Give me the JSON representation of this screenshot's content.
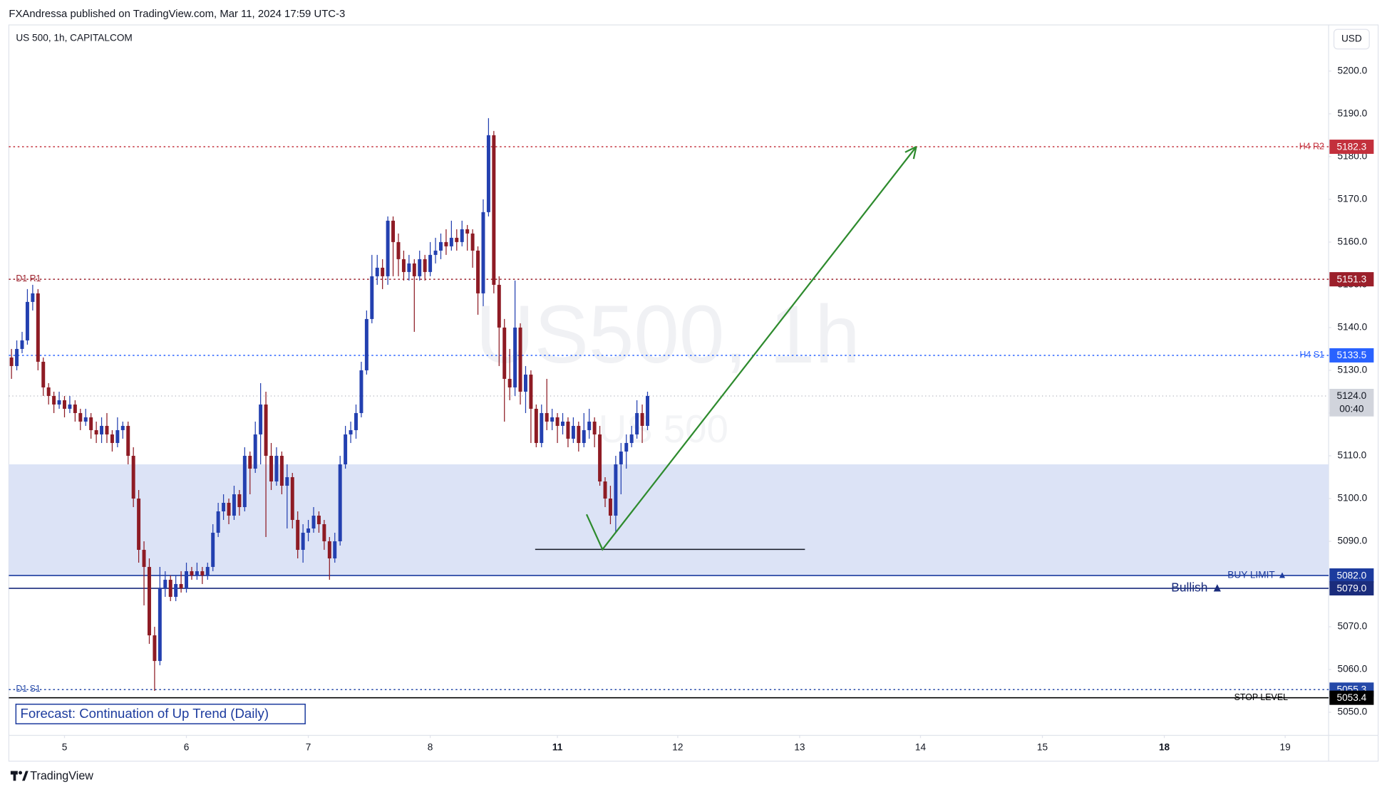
{
  "chart_data": {
    "type": "candlestick",
    "publisher_note": "FXAndressa published on TradingView.com, Mar 11, 2024 17:59 UTC-3",
    "title": "US 500, 1h, CAPITALCOM",
    "currency": "USD",
    "watermark": [
      "US500, 1h",
      "US 500"
    ],
    "annotation": "Forecast: Continuation of Up Trend (Daily)",
    "brand": "TradingView",
    "up_color": "#2340b0",
    "down_color": "#8e1b24",
    "grid": false,
    "xlim": [
      -0.5,
      248.5
    ],
    "ylim": [
      5044.6,
      5210.8
    ],
    "xticks": [
      {
        "value": 10,
        "label": "5"
      },
      {
        "value": 33,
        "label": "6"
      },
      {
        "value": 56,
        "label": "7"
      },
      {
        "value": 79,
        "label": "8"
      },
      {
        "value": 103,
        "label": "11",
        "bold": true
      },
      {
        "value": 125.7,
        "label": "12"
      },
      {
        "value": 148.7,
        "label": "13"
      },
      {
        "value": 171.5,
        "label": "14"
      },
      {
        "value": 194.5,
        "label": "15"
      },
      {
        "value": 217.5,
        "label": "18",
        "bold": true
      },
      {
        "value": 240.3,
        "label": "19"
      }
    ],
    "yticks": [
      {
        "value": 5050,
        "label": "5050.0"
      },
      {
        "value": 5060,
        "label": "5060.0"
      },
      {
        "value": 5070,
        "label": "5070.0"
      },
      {
        "value": 5080,
        "label": "5080.0"
      },
      {
        "value": 5090,
        "label": "5090.0"
      },
      {
        "value": 5100,
        "label": "5100.0"
      },
      {
        "value": 5110,
        "label": "5110.0"
      },
      {
        "value": 5120,
        "label": "5120.0"
      },
      {
        "value": 5130,
        "label": "5130.0"
      },
      {
        "value": 5140,
        "label": "5140.0"
      },
      {
        "value": 5150,
        "label": "5150.0"
      },
      {
        "value": 5160,
        "label": "5160.0"
      },
      {
        "value": 5170,
        "label": "5170.0"
      },
      {
        "value": 5180,
        "label": "5180.0"
      },
      {
        "value": 5190,
        "label": "5190.0"
      },
      {
        "value": 5200,
        "label": "5200.0"
      }
    ],
    "x": [
      0,
      1,
      2,
      3,
      4,
      5,
      6,
      7,
      8,
      9,
      10,
      11,
      12,
      13,
      14,
      15,
      16,
      17,
      18,
      19,
      20,
      21,
      22,
      23,
      24,
      25,
      26,
      27,
      28,
      29,
      30,
      31,
      32,
      33,
      34,
      35,
      36,
      37,
      38,
      39,
      40,
      41,
      42,
      43,
      44,
      45,
      46,
      47,
      48,
      49,
      50,
      51,
      52,
      53,
      54,
      55,
      56,
      57,
      58,
      59,
      60,
      61,
      62,
      63,
      64,
      65,
      66,
      67,
      68,
      69,
      70,
      71,
      72,
      73,
      74,
      75,
      76,
      77,
      78,
      79,
      80,
      81,
      82,
      83,
      84,
      85,
      86,
      87,
      88,
      89,
      90,
      91,
      92,
      93,
      94,
      95,
      96,
      97,
      98,
      99,
      100,
      101,
      102,
      103,
      104,
      105,
      106,
      107,
      108,
      109,
      110,
      111,
      112,
      113,
      114,
      115,
      116,
      117,
      118,
      119,
      120
    ],
    "open": [
      5133,
      5131,
      5135,
      5137,
      5146,
      5148,
      5132,
      5126,
      5124,
      5122,
      5123,
      5121,
      5122,
      5120,
      5118,
      5119,
      5116,
      5115,
      5117,
      5115,
      5113,
      5116,
      5117,
      5110,
      5100,
      5088,
      5084,
      5068,
      5062,
      5079,
      5081,
      5077,
      5080,
      5079,
      5083,
      5082,
      5083,
      5082,
      5084,
      5092,
      5097,
      5099,
      5096,
      5101,
      5098,
      5110,
      5107,
      5115,
      5122,
      5110,
      5104,
      5110,
      5103,
      5105,
      5095,
      5088,
      5092,
      5093,
      5096,
      5094,
      5090,
      5086,
      5090,
      5108,
      5115,
      5116,
      5120,
      5130,
      5142,
      5152,
      5154,
      5152,
      5165,
      5160,
      5156,
      5153,
      5155,
      5152,
      5156,
      5153,
      5157,
      5158,
      5160,
      5159,
      5161,
      5160,
      5163,
      5162,
      5158,
      5148,
      5167,
      5185,
      5150,
      5140,
      5128,
      5126,
      5140,
      5125,
      5129,
      5121,
      5113,
      5120,
      5118,
      5119,
      5117,
      5118,
      5114,
      5117,
      5113,
      5116,
      5118,
      5115,
      5104,
      5100,
      5096,
      5108,
      5111,
      5113,
      5115,
      5120,
      5117
    ],
    "high": [
      5135,
      5137,
      5139,
      5149,
      5150,
      5149,
      5133,
      5127,
      5125,
      5125,
      5124,
      5124,
      5123,
      5121,
      5121,
      5120,
      5118,
      5119,
      5120,
      5116,
      5119,
      5118,
      5118,
      5112,
      5102,
      5090,
      5086,
      5070,
      5084,
      5083,
      5082,
      5082,
      5083,
      5085,
      5084,
      5085,
      5084,
      5085,
      5094,
      5099,
      5101,
      5100,
      5103,
      5102,
      5112,
      5111,
      5118,
      5127,
      5125,
      5113,
      5112,
      5111,
      5108,
      5106,
      5097,
      5094,
      5095,
      5098,
      5097,
      5095,
      5091,
      5092,
      5110,
      5117,
      5118,
      5122,
      5132,
      5144,
      5157,
      5157,
      5156,
      5166,
      5166,
      5162,
      5158,
      5157,
      5156,
      5158,
      5157,
      5160,
      5161,
      5162,
      5163,
      5165,
      5163,
      5165,
      5164,
      5163,
      5159,
      5170,
      5189,
      5186,
      5152,
      5142,
      5135,
      5151,
      5141,
      5131,
      5130,
      5122,
      5122,
      5128,
      5121,
      5120,
      5120,
      5119,
      5119,
      5118,
      5120,
      5121,
      5119,
      5117,
      5105,
      5103,
      5110,
      5113,
      5115,
      5117,
      5123,
      5122,
      5125
    ],
    "low": [
      5128,
      5130,
      5134,
      5136,
      5144,
      5130,
      5124,
      5122,
      5120,
      5121,
      5119,
      5120,
      5118,
      5116,
      5117,
      5114,
      5113,
      5113,
      5113,
      5111,
      5112,
      5114,
      5108,
      5098,
      5085,
      5075,
      5066,
      5055,
      5061,
      5077,
      5076,
      5076,
      5078,
      5078,
      5081,
      5081,
      5080,
      5081,
      5083,
      5091,
      5095,
      5094,
      5095,
      5096,
      5097,
      5101,
      5106,
      5108,
      5091,
      5102,
      5103,
      5101,
      5093,
      5093,
      5086,
      5085,
      5090,
      5092,
      5092,
      5088,
      5081,
      5085,
      5089,
      5107,
      5113,
      5114,
      5119,
      5129,
      5141,
      5150,
      5149,
      5150,
      5152,
      5152,
      5151,
      5151,
      5139,
      5151,
      5151,
      5152,
      5155,
      5156,
      5157,
      5158,
      5158,
      5159,
      5158,
      5154,
      5143,
      5145,
      5166,
      5148,
      5131,
      5118,
      5123,
      5124,
      5122,
      5120,
      5113,
      5112,
      5112,
      5116,
      5116,
      5113,
      5115,
      5112,
      5113,
      5111,
      5112,
      5114,
      5112,
      5103,
      5098,
      5094,
      5092,
      5101,
      5107,
      5112,
      5114,
      5113,
      5116
    ],
    "close": [
      5131,
      5135,
      5137,
      5146,
      5148,
      5132,
      5126,
      5124,
      5122,
      5123,
      5121,
      5122,
      5120,
      5118,
      5119,
      5116,
      5115,
      5117,
      5115,
      5113,
      5116,
      5117,
      5110,
      5100,
      5088,
      5084,
      5068,
      5062,
      5079,
      5081,
      5077,
      5080,
      5079,
      5083,
      5082,
      5083,
      5082,
      5084,
      5092,
      5097,
      5099,
      5096,
      5101,
      5098,
      5110,
      5107,
      5115,
      5122,
      5110,
      5104,
      5110,
      5103,
      5105,
      5095,
      5088,
      5092,
      5093,
      5096,
      5094,
      5090,
      5086,
      5090,
      5108,
      5115,
      5116,
      5120,
      5130,
      5142,
      5152,
      5154,
      5152,
      5165,
      5160,
      5156,
      5153,
      5155,
      5152,
      5156,
      5153,
      5157,
      5158,
      5160,
      5159,
      5161,
      5160,
      5163,
      5162,
      5158,
      5148,
      5167,
      5185,
      5150,
      5140,
      5128,
      5126,
      5140,
      5125,
      5129,
      5121,
      5113,
      5120,
      5118,
      5119,
      5117,
      5118,
      5114,
      5117,
      5113,
      5116,
      5118,
      5115,
      5104,
      5100,
      5096,
      5108,
      5111,
      5113,
      5115,
      5120,
      5117,
      5124
    ],
    "last_price": {
      "value": 5124,
      "value_label": "5124.0",
      "countdown": "00:40",
      "color": "#d1d4dc"
    },
    "zone": {
      "low": 5082,
      "high": 5108,
      "color": "#dce3f6"
    },
    "levels": [
      {
        "name": "H4 R2",
        "value": 5182.3,
        "color": "#c3303c",
        "style": "dotted",
        "label_side": "right"
      },
      {
        "name": "D1 R1",
        "value": 5151.3,
        "color": "#9b1f2a",
        "style": "dotted",
        "label_side": "left"
      },
      {
        "name": "H4 S1",
        "value": 5133.5,
        "color": "#2962ff",
        "style": "dotted",
        "label_side": "right"
      },
      {
        "name": "BUY LIMIT ▲",
        "value": 5082,
        "value_label": "5082.0",
        "color": "#1c3b9e",
        "style": "solid",
        "label_side": "right"
      },
      {
        "name": "Bullish ▲",
        "value": 5079,
        "value_label": "5079.0",
        "color": "#1a2c7c",
        "style": "solid",
        "label_side": "right"
      },
      {
        "name": "D1 S1",
        "value": 5055.3,
        "color": "#2448a8",
        "style": "dotted",
        "label_side": "left"
      },
      {
        "name": "STOP LEVEL",
        "value": 5053.4,
        "color": "#000000",
        "style": "solid",
        "label_side": "right"
      }
    ],
    "arrow": {
      "x": [
        108.5,
        111.5,
        170.7
      ],
      "y": [
        5096.3,
        5088.1,
        5182.3
      ],
      "color": "#2e8b2e"
    },
    "support_line": {
      "x": [
        98.8,
        149.7
      ],
      "y": [
        5088.1,
        5088.1
      ],
      "color": "#131722"
    }
  }
}
